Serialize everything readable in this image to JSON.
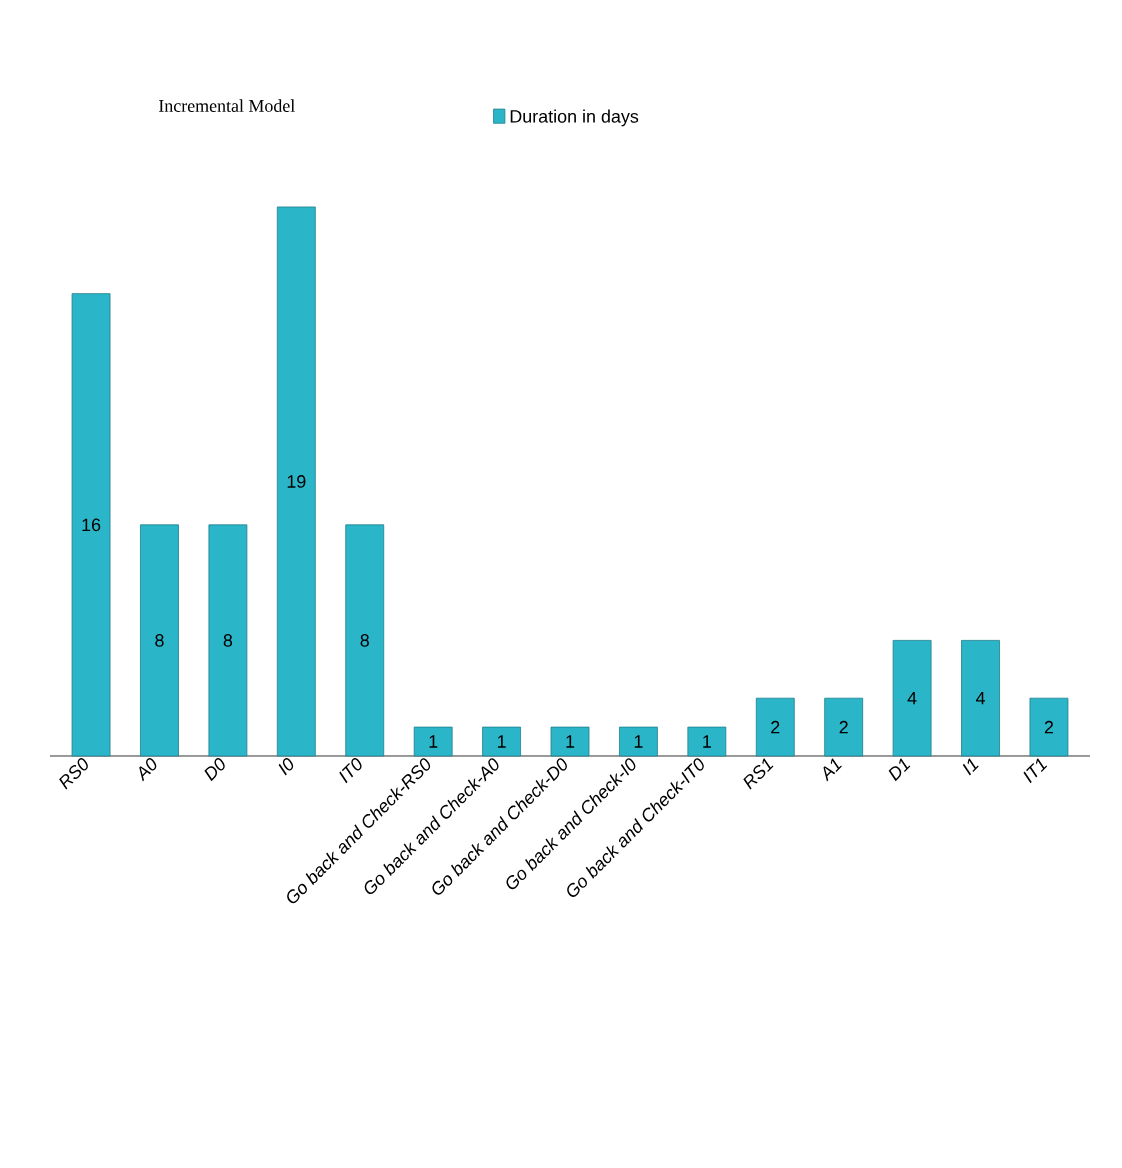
{
  "chart_data": {
    "type": "bar",
    "title": "Incremental Model",
    "categories": [
      "RS0",
      "A0",
      "D0",
      "I0",
      "IT0",
      "Go back and Check-RS0",
      "Go back and Check-A0",
      "Go back and Check-D0",
      "Go back and Check-I0",
      "Go back and Check-IT0",
      "RS1",
      "A1",
      "D1",
      "I1",
      "IT1"
    ],
    "series": [
      {
        "name": "Duration in days",
        "color": "#2bb5c8",
        "values": [
          16,
          8,
          8,
          19,
          8,
          1,
          1,
          1,
          1,
          1,
          2,
          2,
          4,
          4,
          2
        ]
      }
    ],
    "data_labels": true,
    "legend": "top"
  }
}
